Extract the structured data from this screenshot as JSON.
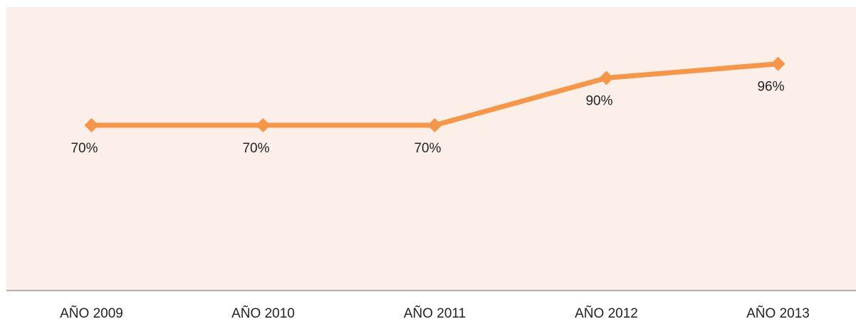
{
  "chart_data": {
    "type": "line",
    "categories": [
      "AÑO 2009",
      "AÑO 2010",
      "AÑO 2011",
      "AÑO 2012",
      "AÑO 2013"
    ],
    "series": [
      {
        "color": "#f79646",
        "values": [
          70,
          70,
          70,
          90,
          96
        ],
        "value_labels": [
          "70%",
          "70%",
          "70%",
          "90%",
          "96%"
        ]
      }
    ],
    "ylim": [
      0,
      120
    ]
  }
}
